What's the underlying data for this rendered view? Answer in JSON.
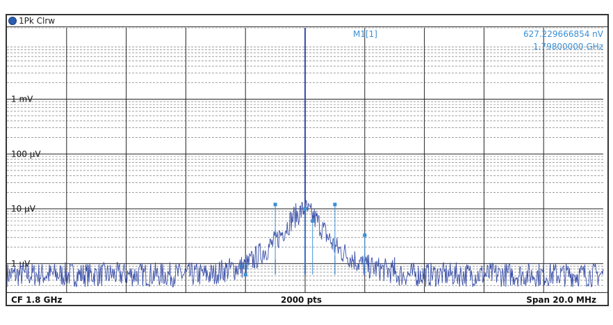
{
  "header": {
    "trace_label": "1Pk Clrw"
  },
  "marker_readout": {
    "name": "M1[1]",
    "value": "627.229666854 nV",
    "frequency": "1.79800000 GHz"
  },
  "footer": {
    "center_freq": "CF 1.8 GHz",
    "points": "2000 pts",
    "span": "Span 20.0 MHz"
  },
  "colors": {
    "trace": "#3a4fa8",
    "marker": "#3a8fd6",
    "grid": "#222222",
    "grid_minor": "#666666"
  },
  "chart_data": {
    "type": "line",
    "x_unit": "MHz",
    "y_scale": "log",
    "y_unit": "V",
    "xlim": [
      1790,
      1810
    ],
    "ylim": [
      3e-07,
      0.02
    ],
    "y_ticks": [
      {
        "value": 0.001,
        "label": "1 mV"
      },
      {
        "value": 0.0001,
        "label": "100 µV"
      },
      {
        "value": 1e-05,
        "label": "10 µV"
      },
      {
        "value": 1e-06,
        "label": "1 µV"
      }
    ],
    "series": [
      {
        "noise_floor": 6.3e-07,
        "carrier": {
          "x": 1800,
          "y": 0.02
        },
        "skirt": [
          {
            "x": 1797,
            "y": 7e-07
          },
          {
            "x": 1798,
            "y": 9e-07
          },
          {
            "x": 1799,
            "y": 2.5e-06
          },
          {
            "x": 1799.6,
            "y": 7e-06
          },
          {
            "x": 1800,
            "y": 1e-05
          },
          {
            "x": 1800.4,
            "y": 6e-06
          },
          {
            "x": 1801,
            "y": 2e-06
          },
          {
            "x": 1802,
            "y": 9e-07
          },
          {
            "x": 1803,
            "y": 7e-07
          }
        ],
        "spurs": [
          {
            "x": 1799.0,
            "y": 1.2e-06
          },
          {
            "x": 1801.0,
            "y": 1.4e-06
          },
          {
            "x": 1802.0,
            "y": 1.5e-06
          },
          {
            "x": 1803.0,
            "y": 1.3e-06
          }
        ]
      }
    ],
    "markers": [
      {
        "label": "M1",
        "x": 1798.0,
        "y": 6.27229666854e-07
      },
      {
        "x": 1799.0,
        "y": 1.2e-05
      },
      {
        "x": 1800.0,
        "y": 1e-05
      },
      {
        "x": 1800.25,
        "y": 6e-06
      },
      {
        "x": 1801.0,
        "y": 1.2e-05
      },
      {
        "x": 1802.0,
        "y": 3.3e-06
      }
    ]
  }
}
